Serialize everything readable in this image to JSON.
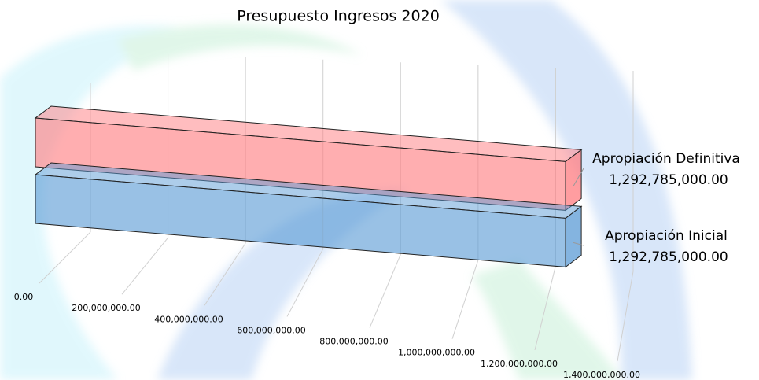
{
  "chart_data": {
    "type": "bar3d",
    "title": "Presupuesto Ingresos 2020",
    "series": [
      {
        "name": "Apropiación Definitiva",
        "color": "#ff7c80",
        "values": [
          1292785000
        ],
        "value_labels": [
          "1,292,785,000.00"
        ]
      },
      {
        "name": "Apropiación Inicial",
        "color": "#5b9bd5",
        "values": [
          1292785000
        ],
        "value_labels": [
          "1,292,785,000.00"
        ]
      }
    ],
    "xlim": [
      0,
      1400000000
    ],
    "xticks": [
      {
        "value": 0,
        "label": "0.00"
      },
      {
        "value": 200000000,
        "label": "200,000,000.00"
      },
      {
        "value": 400000000,
        "label": "400,000,000.00"
      },
      {
        "value": 600000000,
        "label": "600,000,000.00"
      },
      {
        "value": 800000000,
        "label": "800,000,000.00"
      },
      {
        "value": 1000000000,
        "label": "1,000,000,000.00"
      },
      {
        "value": 1200000000,
        "label": "1,200,000,000.00"
      },
      {
        "value": 1400000000,
        "label": "1,400,000,000.00"
      }
    ],
    "grid": true
  }
}
